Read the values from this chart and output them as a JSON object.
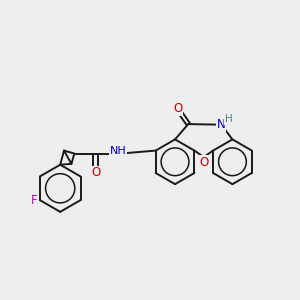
{
  "background_color": "#eeeeee",
  "bond_color": "#1a1a1a",
  "N_color": "#0000cc",
  "O_color": "#cc0000",
  "F_color": "#cc00cc",
  "H_color": "#448888",
  "line_width": 1.4,
  "figsize": [
    3.0,
    3.0
  ],
  "dpi": 100,
  "xlim": [
    0,
    10
  ],
  "ylim": [
    0,
    10
  ]
}
